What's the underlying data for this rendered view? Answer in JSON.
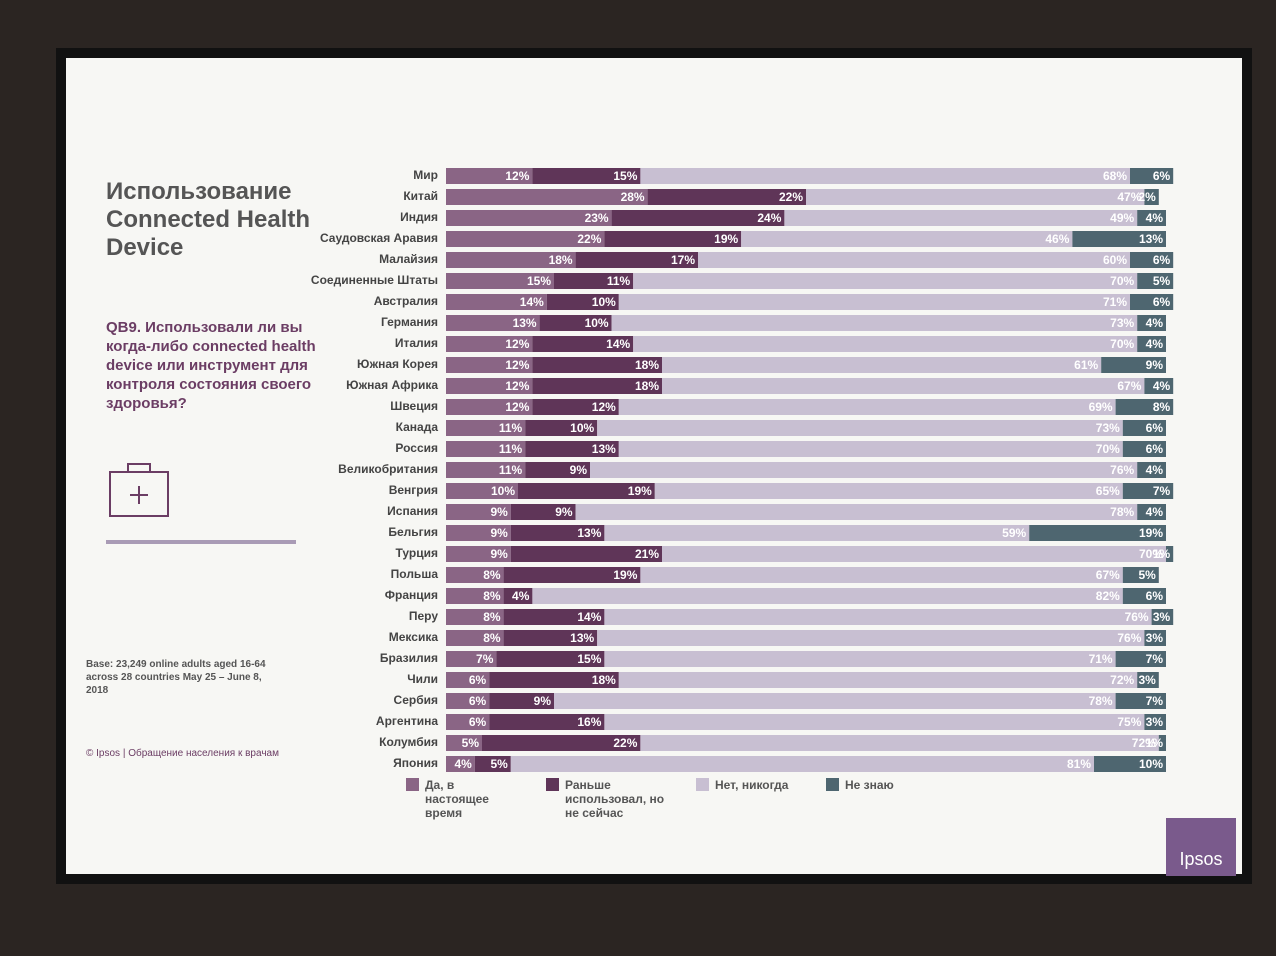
{
  "chart_data": {
    "type": "stacked-bar",
    "title": "Использование Connected Health Device",
    "subtitle": "QB9. Использовали ли вы когда-либо connected health device или инструмент для контроля состояния своего здоровья?",
    "note": "Base: 23,249 online adults aged 16-64 across 28 countries May 25 – June 8, 2018",
    "footer": "© Ipsos | Обращение населения к врачам",
    "logo": "Ipsos",
    "xlim": [
      0,
      100
    ],
    "categories": [
      "Мир",
      "Китай",
      "Индия",
      "Саудовская Аравия",
      "Малайзия",
      "Соединенные Штаты",
      "Австралия",
      "Германия",
      "Италия",
      "Южная Корея",
      "Южная Африка",
      "Швеция",
      "Канада",
      "Россия",
      "Великобритания",
      "Венгрия",
      "Испания",
      "Бельгия",
      "Турция",
      "Польша",
      "Франция",
      "Перу",
      "Мексика",
      "Бразилия",
      "Чили",
      "Сербия",
      "Аргентина",
      "Колумбия",
      "Япония"
    ],
    "series": [
      {
        "name": "Да, в настоящее время",
        "color": "#8a6585",
        "values": [
          12,
          28,
          23,
          22,
          18,
          15,
          14,
          13,
          12,
          12,
          12,
          12,
          11,
          11,
          11,
          10,
          9,
          9,
          9,
          8,
          8,
          8,
          8,
          7,
          6,
          6,
          6,
          5,
          4
        ],
        "value_labels": [
          "12%",
          "28%",
          "23%",
          "22%",
          "18%",
          "15%",
          "14%",
          "13%",
          "12%",
          "12%",
          "12%",
          "12%",
          "11%",
          "11%",
          "11%",
          "10%",
          "9%",
          "9%",
          "9%",
          "8%",
          "8%",
          "8%",
          "8%",
          "7%",
          "6%",
          "6%",
          "6%",
          "5%",
          "4%"
        ]
      },
      {
        "name": "Раньше использовал, но не сейчас",
        "color": "#5f3558",
        "values": [
          15,
          22,
          24,
          19,
          17,
          11,
          10,
          10,
          14,
          18,
          18,
          12,
          10,
          13,
          9,
          19,
          9,
          13,
          21,
          19,
          4,
          14,
          13,
          15,
          18,
          9,
          16,
          22,
          5
        ],
        "value_labels": [
          "15%",
          "22%",
          "24%",
          "19%",
          "17%",
          "11%",
          "10%",
          "10%",
          "14%",
          "18%",
          "18%",
          "12%",
          "10%",
          "13%",
          "9%",
          "19%",
          "9%",
          "13%",
          "21%",
          "19%",
          "4%",
          "14%",
          "13%",
          "15%",
          "18%",
          "9%",
          "16%",
          "22%",
          "5%"
        ]
      },
      {
        "name": "Нет, никогда",
        "color": "#c8bfd2",
        "values": [
          68,
          47,
          49,
          46,
          60,
          70,
          71,
          73,
          70,
          61,
          67,
          69,
          73,
          70,
          76,
          65,
          78,
          59,
          70,
          67,
          82,
          76,
          76,
          71,
          72,
          78,
          75,
          72,
          81
        ],
        "value_labels": [
          "68%",
          "47%",
          "49%",
          "46%",
          "60%",
          "70%",
          "71%",
          "73%",
          "70%",
          "61%",
          "67%",
          "69%",
          "73%",
          "70%",
          "76%",
          "65%",
          "78%",
          "59%",
          "70%",
          "67%",
          "82%",
          "76%",
          "76%",
          "71%",
          "72%",
          "78%",
          "75%",
          "72%",
          "81%"
        ]
      },
      {
        "name": "Не знаю",
        "color": "#4e6670",
        "values": [
          6,
          2,
          4,
          13,
          6,
          5,
          6,
          4,
          4,
          9,
          4,
          8,
          6,
          6,
          4,
          7,
          4,
          19,
          1,
          5,
          6,
          3,
          3,
          7,
          3,
          7,
          3,
          1,
          10
        ],
        "value_labels": [
          "6%",
          "2%",
          "4%",
          "13%",
          "6%",
          "5%",
          "6%",
          "4%",
          "4%",
          "9%",
          "4%",
          "8%",
          "6%",
          "6%",
          "4%",
          "7%",
          "4%",
          "19%",
          "1%",
          "5%",
          "6%",
          "3%",
          "3%",
          "7%",
          "3%",
          "7%",
          "3%",
          "1%",
          "10%"
        ]
      }
    ]
  }
}
